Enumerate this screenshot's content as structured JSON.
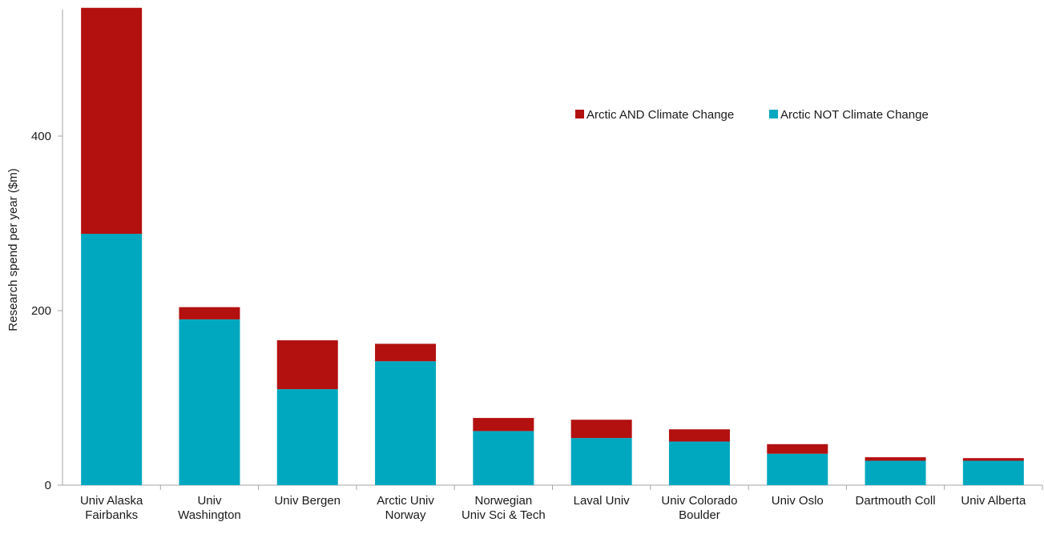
{
  "chart_data": {
    "type": "bar",
    "stacked": true,
    "title": "",
    "xlabel": "",
    "ylabel": "Research spend per year ($m)",
    "ylim": [
      0,
      550
    ],
    "yticks": [
      0,
      200,
      400
    ],
    "grid": false,
    "legend_position": "top-right",
    "categories": [
      [
        "Univ Alaska",
        "Fairbanks"
      ],
      [
        "Univ",
        "Washington"
      ],
      [
        "Univ Bergen"
      ],
      [
        "Arctic Univ",
        "Norway"
      ],
      [
        "Norwegian",
        "Univ Sci & Tech"
      ],
      [
        "Laval Univ"
      ],
      [
        "Univ Colorado",
        "Boulder"
      ],
      [
        "Univ Oslo"
      ],
      [
        "Dartmouth Coll"
      ],
      [
        "Univ Alberta"
      ]
    ],
    "series": [
      {
        "name": "Arctic NOT Climate Change",
        "color": "#00a8bf",
        "values": [
          288,
          190,
          110,
          142,
          62,
          54,
          50,
          36,
          28,
          28
        ]
      },
      {
        "name": "Arctic AND Climate Change",
        "color": "#b31010",
        "values": [
          259,
          14,
          56,
          20,
          15,
          21,
          14,
          11,
          4,
          3
        ]
      }
    ],
    "legend_order": [
      "Arctic AND Climate Change",
      "Arctic NOT Climate Change"
    ]
  }
}
